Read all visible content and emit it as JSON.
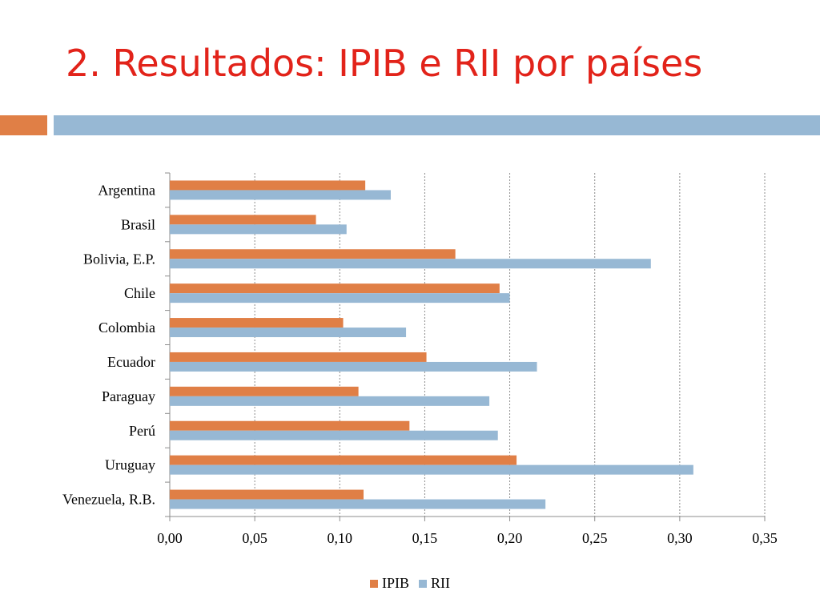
{
  "slide": {
    "title": "2. Resultados: IPIB e RII por países"
  },
  "colors": {
    "title": "#e2231a",
    "band_orange": "#e07f46",
    "band_blue": "#97b8d4",
    "ipib": "#e07f46",
    "rii": "#97b8d4"
  },
  "chart_data": {
    "type": "bar",
    "orientation": "horizontal",
    "categories": [
      "Argentina",
      "Brasil",
      "Bolivia, E.P.",
      "Chile",
      "Colombia",
      "Ecuador",
      "Paraguay",
      "Perú",
      "Uruguay",
      "Venezuela, R.B."
    ],
    "series": [
      {
        "name": "IPIB",
        "color": "#e07f46",
        "values": [
          0.115,
          0.086,
          0.168,
          0.194,
          0.102,
          0.151,
          0.111,
          0.141,
          0.204,
          0.114
        ]
      },
      {
        "name": "RII",
        "color": "#97b8d4",
        "values": [
          0.13,
          0.104,
          0.283,
          0.2,
          0.139,
          0.216,
          0.188,
          0.193,
          0.308,
          0.221
        ]
      }
    ],
    "xlim": [
      0,
      0.35
    ],
    "xticks": [
      "0,00",
      "0,05",
      "0,10",
      "0,15",
      "0,20",
      "0,25",
      "0,30",
      "0,35"
    ],
    "grid": "vertical dashed",
    "legend_position": "bottom"
  }
}
